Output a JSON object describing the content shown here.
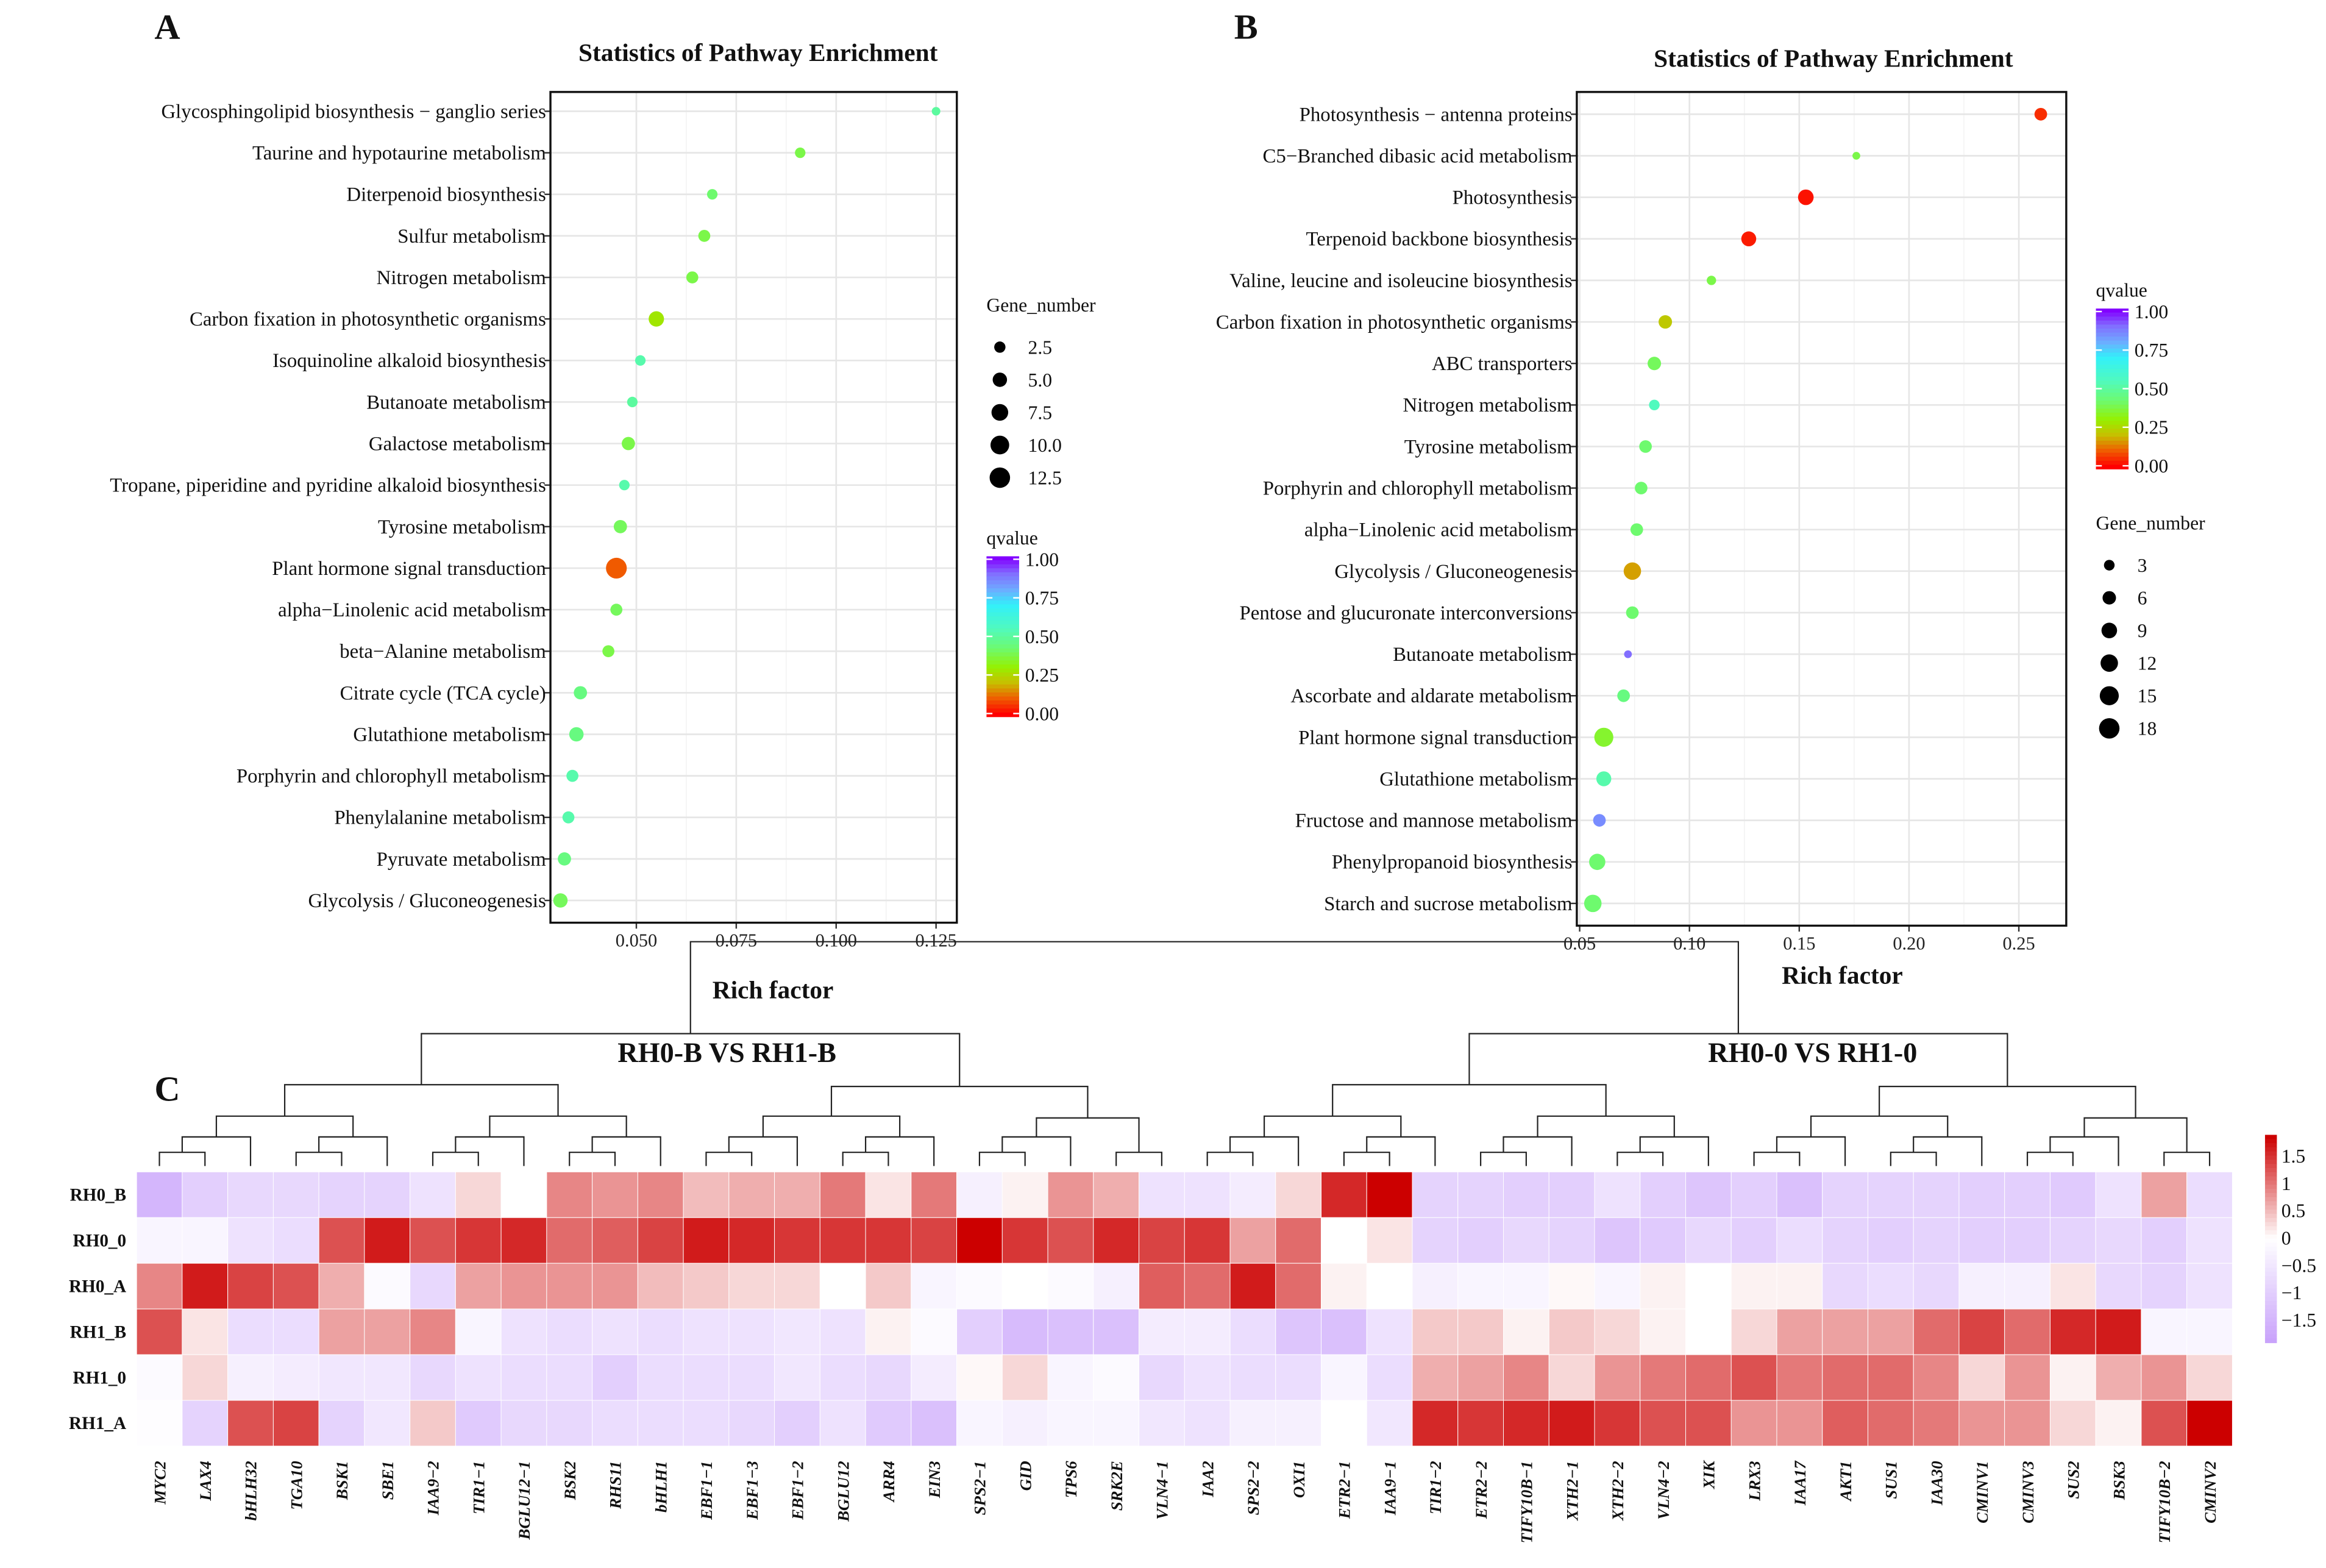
{
  "chart_data": [
    {
      "panel": "A",
      "type": "scatter",
      "title": "Statistics of Pathway Enrichment",
      "xlabel": "Rich factor",
      "xlim": [
        0.0285,
        0.1302
      ],
      "xticks": [
        0.05,
        0.075,
        0.1,
        0.125
      ],
      "xtick_labels": [
        "0.050",
        "0.075",
        "0.100",
        "0.125"
      ],
      "grid": true,
      "size_legend": {
        "title": "Gene_number",
        "values": [
          2.5,
          5.0,
          7.5,
          10.0,
          12.5
        ],
        "labels": [
          "2.5",
          "5.0",
          "7.5",
          "10.0",
          "12.5"
        ]
      },
      "color_legend": {
        "title": "qvalue",
        "labels": [
          "1.00",
          "0.75",
          "0.50",
          "0.25",
          "0.00"
        ]
      },
      "size_order": "size-first",
      "points": [
        {
          "pathway": "Glycosphingolipid biosynthesis − ganglio series",
          "rich_factor": 0.125,
          "gene_number": 1,
          "qvalue": 0.5
        },
        {
          "pathway": "Taurine and hypotaurine metabolism",
          "rich_factor": 0.091,
          "gene_number": 2,
          "qvalue": 0.38
        },
        {
          "pathway": "Diterpenoid biosynthesis",
          "rich_factor": 0.069,
          "gene_number": 2,
          "qvalue": 0.42
        },
        {
          "pathway": "Sulfur metabolism",
          "rich_factor": 0.067,
          "gene_number": 3,
          "qvalue": 0.38
        },
        {
          "pathway": "Nitrogen metabolism",
          "rich_factor": 0.064,
          "gene_number": 3,
          "qvalue": 0.38
        },
        {
          "pathway": "Carbon fixation in photosynthetic organisms",
          "rich_factor": 0.055,
          "gene_number": 6,
          "qvalue": 0.28
        },
        {
          "pathway": "Isoquinoline alkaloid biosynthesis",
          "rich_factor": 0.051,
          "gene_number": 2,
          "qvalue": 0.52
        },
        {
          "pathway": "Butanoate metabolism",
          "rich_factor": 0.049,
          "gene_number": 2,
          "qvalue": 0.5
        },
        {
          "pathway": "Galactose metabolism",
          "rich_factor": 0.048,
          "gene_number": 4,
          "qvalue": 0.38
        },
        {
          "pathway": "Tropane, piperidine and pyridine alkaloid biosynthesis",
          "rich_factor": 0.047,
          "gene_number": 2,
          "qvalue": 0.52
        },
        {
          "pathway": "Tyrosine metabolism",
          "rich_factor": 0.046,
          "gene_number": 4,
          "qvalue": 0.4
        },
        {
          "pathway": "Plant hormone signal transduction",
          "rich_factor": 0.045,
          "gene_number": 13,
          "qvalue": 0.1
        },
        {
          "pathway": "alpha−Linolenic acid metabolism",
          "rich_factor": 0.045,
          "gene_number": 3,
          "qvalue": 0.4
        },
        {
          "pathway": "beta−Alanine metabolism",
          "rich_factor": 0.043,
          "gene_number": 3,
          "qvalue": 0.38
        },
        {
          "pathway": "Citrate cycle (TCA cycle)",
          "rich_factor": 0.036,
          "gene_number": 4,
          "qvalue": 0.45
        },
        {
          "pathway": "Glutathione metabolism",
          "rich_factor": 0.035,
          "gene_number": 5,
          "qvalue": 0.45
        },
        {
          "pathway": "Porphyrin and chlorophyll metabolism",
          "rich_factor": 0.034,
          "gene_number": 3,
          "qvalue": 0.52
        },
        {
          "pathway": "Phenylalanine metabolism",
          "rich_factor": 0.033,
          "gene_number": 3,
          "qvalue": 0.52
        },
        {
          "pathway": "Pyruvate metabolism",
          "rich_factor": 0.032,
          "gene_number": 4,
          "qvalue": 0.45
        },
        {
          "pathway": "Glycolysis / Gluconeogenesis",
          "rich_factor": 0.031,
          "gene_number": 5,
          "qvalue": 0.4
        }
      ]
    },
    {
      "panel": "B",
      "type": "scatter",
      "title": "Statistics of Pathway Enrichment",
      "xlabel": "Rich factor",
      "xlim": [
        0.0487,
        0.2716
      ],
      "xticks": [
        0.05,
        0.1,
        0.15,
        0.2,
        0.25
      ],
      "xtick_labels": [
        "0.05",
        "0.10",
        "0.15",
        "0.20",
        "0.25"
      ],
      "grid": true,
      "size_legend": {
        "title": "Gene_number",
        "values": [
          3,
          6,
          9,
          12,
          15,
          18
        ],
        "labels": [
          "3",
          "6",
          "9",
          "12",
          "15",
          "18"
        ]
      },
      "color_legend": {
        "title": "qvalue",
        "labels": [
          "1.00",
          "0.75",
          "0.50",
          "0.25",
          "0.00"
        ]
      },
      "points": [
        {
          "pathway": "Photosynthesis − antenna proteins",
          "rich_factor": 0.26,
          "gene_number": 5,
          "qvalue": 0.05
        },
        {
          "pathway": "C5−Branched dibasic acid metabolism",
          "rich_factor": 0.176,
          "gene_number": 1,
          "qvalue": 0.38
        },
        {
          "pathway": "Photosynthesis",
          "rich_factor": 0.153,
          "gene_number": 9,
          "qvalue": 0.02
        },
        {
          "pathway": "Terpenoid backbone biosynthesis",
          "rich_factor": 0.127,
          "gene_number": 8,
          "qvalue": 0.03
        },
        {
          "pathway": "Valine, leucine and isoleucine biosynthesis",
          "rich_factor": 0.11,
          "gene_number": 2,
          "qvalue": 0.38
        },
        {
          "pathway": "Carbon fixation in photosynthetic organisms",
          "rich_factor": 0.089,
          "gene_number": 6,
          "qvalue": 0.22
        },
        {
          "pathway": "ABC transporters",
          "rich_factor": 0.084,
          "gene_number": 6,
          "qvalue": 0.4
        },
        {
          "pathway": "Nitrogen metabolism",
          "rich_factor": 0.084,
          "gene_number": 3,
          "qvalue": 0.55
        },
        {
          "pathway": "Tyrosine metabolism",
          "rich_factor": 0.08,
          "gene_number": 5,
          "qvalue": 0.42
        },
        {
          "pathway": "Porphyrin and chlorophyll metabolism",
          "rich_factor": 0.078,
          "gene_number": 5,
          "qvalue": 0.42
        },
        {
          "pathway": "alpha−Linolenic acid metabolism",
          "rich_factor": 0.076,
          "gene_number": 5,
          "qvalue": 0.42
        },
        {
          "pathway": "Glycolysis / Gluconeogenesis",
          "rich_factor": 0.074,
          "gene_number": 12,
          "qvalue": 0.17
        },
        {
          "pathway": "Pentose and glucuronate interconversions",
          "rich_factor": 0.074,
          "gene_number": 5,
          "qvalue": 0.42
        },
        {
          "pathway": "Butanoate metabolism",
          "rich_factor": 0.072,
          "gene_number": 1,
          "qvalue": 0.9
        },
        {
          "pathway": "Ascorbate and aldarate metabolism",
          "rich_factor": 0.07,
          "gene_number": 5,
          "qvalue": 0.45
        },
        {
          "pathway": "Plant hormone signal transduction",
          "rich_factor": 0.061,
          "gene_number": 15,
          "qvalue": 0.35
        },
        {
          "pathway": "Glutathione metabolism",
          "rich_factor": 0.061,
          "gene_number": 8,
          "qvalue": 0.52
        },
        {
          "pathway": "Fructose and mannose metabolism",
          "rich_factor": 0.059,
          "gene_number": 5,
          "qvalue": 0.85
        },
        {
          "pathway": "Phenylpropanoid biosynthesis",
          "rich_factor": 0.058,
          "gene_number": 10,
          "qvalue": 0.42
        },
        {
          "pathway": "Starch and sucrose metabolism",
          "rich_factor": 0.056,
          "gene_number": 12,
          "qvalue": 0.42
        }
      ]
    },
    {
      "panel": "C",
      "type": "heatmap",
      "titles": [
        "RH0-B VS RH1-B",
        "RH0-0 VS RH1-0"
      ],
      "colorbar": {
        "range": [
          -1.9,
          1.9
        ],
        "labels": [
          "1.5",
          "1",
          "0.5",
          "0",
          "−0.5",
          "−1",
          "−1.5"
        ],
        "values": [
          1.5,
          1,
          0.5,
          0,
          -0.5,
          -1,
          -1.5
        ],
        "low": "#c9a3fb",
        "mid": "#ffffff",
        "high": "#cc0000"
      },
      "rows": [
        "RH0_B",
        "RH0_0",
        "RH0_A",
        "RH1_B",
        "RH1_0",
        "RH1_A"
      ],
      "columns": [
        "MYC2",
        "LAX4",
        "bHLH32",
        "TGA10",
        "BSK1",
        "SBE1",
        "IAA9−2",
        "TIR1−1",
        "BGLU12−1",
        "BSK2",
        "RHS11",
        "bHLH1",
        "EBF1−1",
        "EBF1−3",
        "EBF1−2",
        "BGLU12",
        "ARR4",
        "EIN3",
        "SPS2−1",
        "GID",
        "TPS6",
        "SRK2E",
        "VLN4−1",
        "IAA2",
        "SPS2−2",
        "OXI1",
        "ETR2−1",
        "IAA9−1",
        "TIR1−2",
        "ETR2−2",
        "TIFY10B−1",
        "XTH2−1",
        "XTH2−2",
        "VLN4−2",
        "XIK",
        "LRX3",
        "IAA17",
        "AKT1",
        "SUS1",
        "IAA30",
        "CMINV1",
        "CMINV3",
        "SUS2",
        "BSK3",
        "TIFY10B−2",
        "CMINV2"
      ],
      "values": [
        [
          -1.5,
          -1.0,
          -0.8,
          -0.8,
          -0.9,
          -0.9,
          -0.6,
          0.3,
          0.0,
          0.9,
          0.8,
          0.9,
          0.5,
          0.6,
          0.6,
          1.0,
          0.2,
          1.0,
          -0.3,
          0.1,
          0.8,
          0.6,
          -0.6,
          -0.6,
          -0.4,
          0.3,
          1.6,
          1.9,
          -0.9,
          -0.9,
          -1.0,
          -1.0,
          -0.6,
          -1.0,
          -1.2,
          -1.0,
          -1.3,
          -0.9,
          -0.9,
          -0.9,
          -1.0,
          -1.0,
          -1.1,
          -0.6,
          0.7,
          -0.7
        ],
        [
          -0.2,
          -0.2,
          -0.6,
          -0.7,
          1.3,
          1.7,
          1.3,
          1.5,
          1.6,
          1.1,
          1.2,
          1.4,
          1.7,
          1.6,
          1.5,
          1.5,
          1.5,
          1.4,
          1.9,
          1.5,
          1.3,
          1.6,
          1.4,
          1.5,
          0.7,
          1.1,
          0.0,
          0.2,
          -0.9,
          -1.0,
          -0.8,
          -0.9,
          -1.2,
          -1.1,
          -0.8,
          -1.0,
          -0.7,
          -0.9,
          -1.0,
          -0.9,
          -1.0,
          -1.0,
          -0.9,
          -0.8,
          -1.0,
          -0.6
        ],
        [
          0.9,
          1.7,
          1.4,
          1.3,
          0.6,
          -0.1,
          -0.8,
          0.7,
          0.8,
          0.8,
          0.8,
          0.5,
          0.4,
          0.3,
          0.3,
          0.0,
          0.4,
          -0.2,
          -0.1,
          0.0,
          -0.1,
          -0.3,
          1.2,
          1.1,
          1.7,
          1.1,
          0.1,
          0.0,
          -0.3,
          -0.2,
          -0.2,
          0.05,
          -0.2,
          0.1,
          0.0,
          0.1,
          0.1,
          -0.8,
          -0.7,
          -0.8,
          -0.3,
          -0.3,
          0.2,
          -0.8,
          -0.9,
          -0.6
        ],
        [
          1.3,
          0.2,
          -0.7,
          -0.7,
          0.7,
          0.7,
          0.9,
          -0.2,
          -0.6,
          -0.7,
          -0.6,
          -0.7,
          -0.6,
          -0.6,
          -0.5,
          -0.6,
          0.1,
          -0.1,
          -1.0,
          -1.4,
          -1.3,
          -1.3,
          -0.4,
          -0.4,
          -0.7,
          -1.2,
          -1.3,
          -0.6,
          0.4,
          0.4,
          0.1,
          0.4,
          0.3,
          0.1,
          0.0,
          0.3,
          0.7,
          0.7,
          0.7,
          1.1,
          1.4,
          1.1,
          1.6,
          1.7,
          -0.2,
          -0.2
        ],
        [
          -0.1,
          0.3,
          -0.3,
          -0.4,
          -0.5,
          -0.5,
          -0.8,
          -0.6,
          -0.7,
          -0.7,
          -1.0,
          -0.7,
          -0.7,
          -0.7,
          -0.5,
          -0.7,
          -0.8,
          -0.4,
          0.05,
          0.3,
          -0.2,
          -0.1,
          -0.8,
          -0.6,
          -0.7,
          -0.7,
          -0.2,
          -0.7,
          0.6,
          0.7,
          0.9,
          0.3,
          0.8,
          1.0,
          1.1,
          1.3,
          1.0,
          1.1,
          1.1,
          0.9,
          0.3,
          0.8,
          0.1,
          0.6,
          0.8,
          0.3
        ],
        [
          -0.05,
          -0.9,
          1.3,
          1.4,
          -0.9,
          -0.5,
          0.4,
          -1.1,
          -0.8,
          -0.8,
          -0.7,
          -0.7,
          -0.7,
          -0.8,
          -1.0,
          -0.6,
          -1.1,
          -1.3,
          -0.2,
          -0.3,
          -0.2,
          -0.2,
          -0.5,
          -0.6,
          -0.3,
          -0.3,
          0.0,
          -0.5,
          1.6,
          1.5,
          1.6,
          1.7,
          1.5,
          1.3,
          1.3,
          0.8,
          0.8,
          1.2,
          1.1,
          1.0,
          0.8,
          0.8,
          0.3,
          0.1,
          1.3,
          1.9
        ]
      ]
    }
  ],
  "labels": {
    "panel_a": "A",
    "panel_b": "B",
    "panel_c": "C"
  }
}
